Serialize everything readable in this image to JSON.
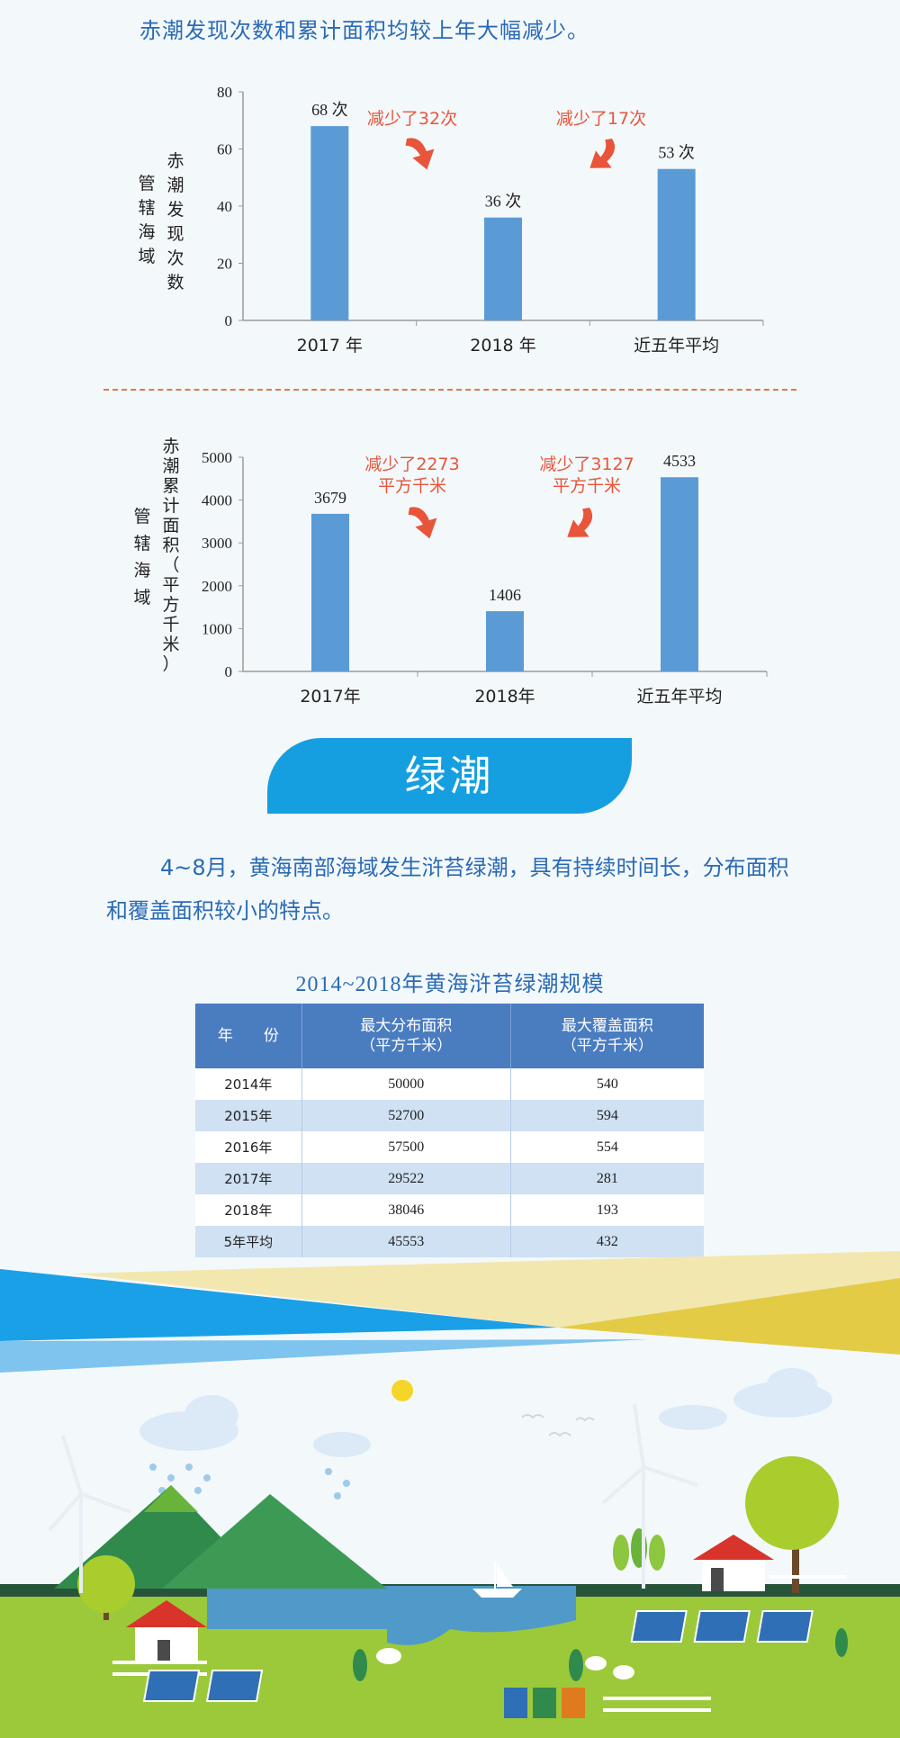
{
  "intro_text": "赤潮发现次数和累计面积均较上年大幅减少。",
  "chart_data": [
    {
      "type": "bar",
      "ylabel_outer": "管辖海域",
      "ylabel_inner": "赤潮发现次数",
      "categories": [
        "2017 年",
        "2018 年",
        "近五年平均"
      ],
      "values": [
        68,
        36,
        53
      ],
      "value_labels": [
        "68 次",
        "36 次",
        "53 次"
      ],
      "ylim": [
        0,
        80
      ],
      "yticks": [
        "0",
        "20",
        "40",
        "60",
        "80"
      ],
      "bar_color": "#5b9bd5",
      "annotations": [
        "减少了32次",
        "减少了17次"
      ],
      "annotation_color": "#e8553a"
    },
    {
      "type": "bar",
      "ylabel_outer": "管辖海域",
      "ylabel_inner": "赤潮累计面积（平方千米）",
      "categories": [
        "2017年",
        "2018年",
        "近五年平均"
      ],
      "values": [
        3679,
        1406,
        4533
      ],
      "value_labels": [
        "3679",
        "1406",
        "4533"
      ],
      "ylim": [
        0,
        5000
      ],
      "yticks": [
        "0",
        "1000",
        "2000",
        "3000",
        "4000",
        "5000"
      ],
      "bar_color": "#5b9bd5",
      "annotations": [
        "减少了2273\n平方千米",
        "减少了3127\n平方千米"
      ],
      "annotation_color": "#e8553a"
    }
  ],
  "section_title": "绿潮",
  "paragraph": "4~8月，黄海南部海域发生浒苔绿潮，具有持续时间长，分布面积和覆盖面积较小的特点。",
  "table": {
    "title": "2014~2018年黄海浒苔绿潮规模",
    "headers": [
      {
        "line1": "年　　份",
        "line2": ""
      },
      {
        "line1": "最大分布面积",
        "line2": "（平方千米）"
      },
      {
        "line1": "最大覆盖面积",
        "line2": "（平方千米）"
      }
    ],
    "rows": [
      [
        "2014年",
        "50000",
        "540"
      ],
      [
        "2015年",
        "52700",
        "594"
      ],
      [
        "2016年",
        "57500",
        "554"
      ],
      [
        "2017年",
        "29522",
        "281"
      ],
      [
        "2018年",
        "38046",
        "193"
      ],
      [
        "5年平均",
        "45553",
        "432"
      ]
    ]
  },
  "colors": {
    "heading_blue": "#2a6ab5",
    "banner_blue": "#169fe0",
    "header_blue": "#4a7cc0",
    "row_stripe": "#cfe1f3"
  }
}
